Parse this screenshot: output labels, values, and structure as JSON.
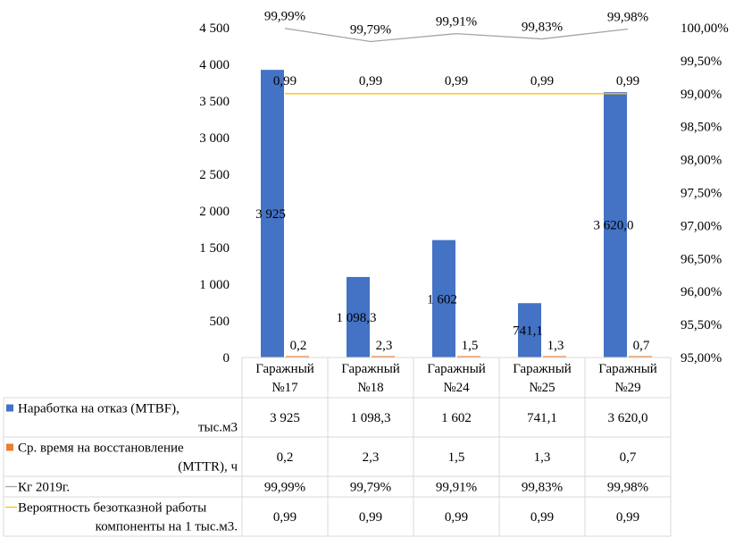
{
  "chart_data": {
    "type": "bar",
    "categories": [
      [
        "Гаражный",
        "№17"
      ],
      [
        "Гаражный",
        "№18"
      ],
      [
        "Гаражный",
        "№24"
      ],
      [
        "Гаражный",
        "№25"
      ],
      [
        "Гаражный",
        "№29"
      ]
    ],
    "y_axis": {
      "min": 0,
      "max": 4500,
      "step": 500,
      "tick_labels": [
        "0",
        "500",
        "1 000",
        "1 500",
        "2 000",
        "2 500",
        "3 000",
        "3 500",
        "4 000",
        "4 500"
      ]
    },
    "y2_axis": {
      "min": 0.95,
      "max": 1.0,
      "step": 0.005,
      "tick_labels": [
        "95,00%",
        "95,50%",
        "96,00%",
        "96,50%",
        "97,00%",
        "97,50%",
        "98,00%",
        "98,50%",
        "99,00%",
        "99,50%",
        "100,00%"
      ]
    },
    "series": [
      {
        "key": "mtbf",
        "kind": "bar",
        "axis": "left",
        "color": "#4472c4",
        "name_lines": [
          "Наработка на отказ (MTBF),",
          "тыс.м3"
        ],
        "values": [
          3925,
          1098.3,
          1602,
          741.1,
          3620.0
        ],
        "labels": [
          "3 925",
          "1 098,3",
          "1 602",
          "741,1",
          "3 620,0"
        ]
      },
      {
        "key": "mttr",
        "kind": "bar",
        "axis": "left",
        "color": "#ed7d31",
        "name_lines": [
          "Ср. время на восстановление",
          "(MTTR), ч"
        ],
        "values": [
          0.2,
          2.3,
          1.5,
          1.3,
          0.7
        ],
        "labels": [
          "0,2",
          "2,3",
          "1,5",
          "1,3",
          "0,7"
        ]
      },
      {
        "key": "kg",
        "kind": "line",
        "axis": "right",
        "color": "#a5a5a5",
        "name_lines": [
          "Кг 2019г."
        ],
        "values": [
          0.9999,
          0.9979,
          0.9991,
          0.9983,
          0.9998
        ],
        "labels": [
          "99,99%",
          "99,79%",
          "99,91%",
          "99,83%",
          "99,98%"
        ]
      },
      {
        "key": "prob",
        "kind": "line",
        "axis": "right",
        "color": "#ffc000",
        "name_lines": [
          "Вероятность безотказной работы",
          "компоненты на 1 тыс.м3."
        ],
        "values": [
          0.99,
          0.99,
          0.99,
          0.99,
          0.99
        ],
        "labels": [
          "0,99",
          "0,99",
          "0,99",
          "0,99",
          "0,99"
        ]
      }
    ],
    "legend": "data-table"
  }
}
